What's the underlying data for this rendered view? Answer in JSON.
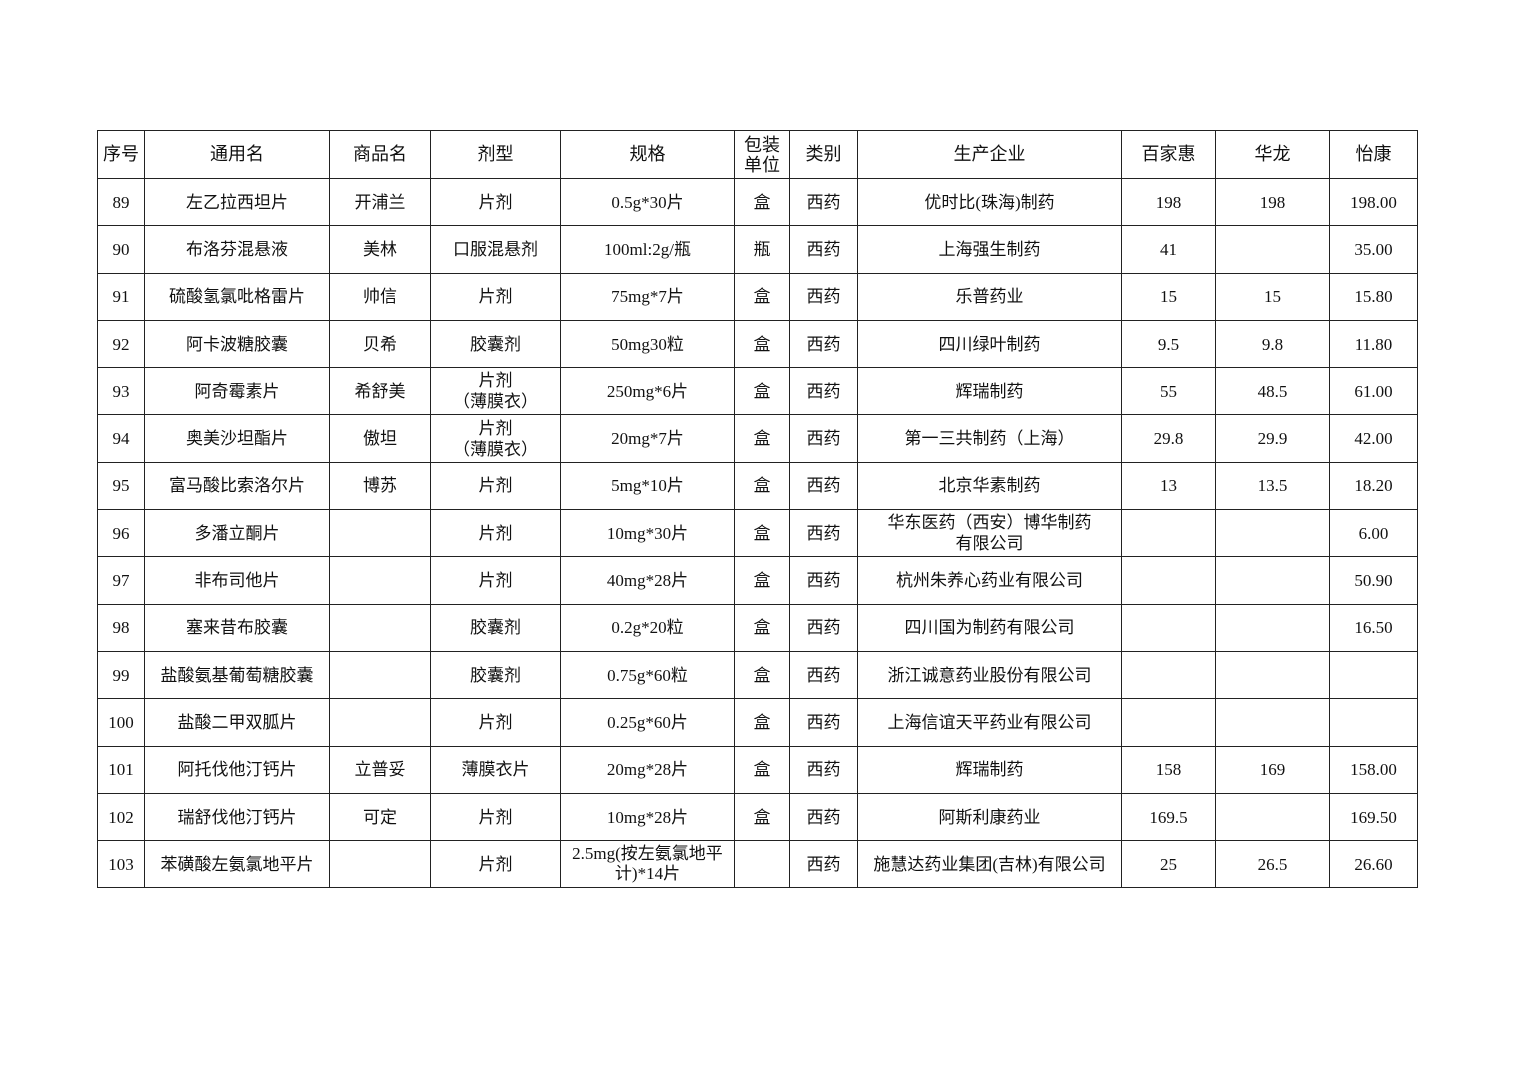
{
  "table": {
    "headers": [
      "序号",
      "通用名",
      "商品名",
      "剂型",
      "规格",
      "包装\n单位",
      "类别",
      "生产企业",
      "百家惠",
      "华龙",
      "怡康"
    ],
    "rows": [
      [
        "89",
        "左乙拉西坦片",
        "开浦兰",
        "片剂",
        "0.5g*30片",
        "盒",
        "西药",
        "优时比(珠海)制药",
        "198",
        "198",
        "198.00"
      ],
      [
        "90",
        "布洛芬混悬液",
        "美林",
        "口服混悬剂",
        "100ml:2g/瓶",
        "瓶",
        "西药",
        "上海强生制药",
        "41",
        "",
        "35.00"
      ],
      [
        "91",
        "硫酸氢氯吡格雷片",
        "帅信",
        "片剂",
        "75mg*7片",
        "盒",
        "西药",
        "乐普药业",
        "15",
        "15",
        "15.80"
      ],
      [
        "92",
        "阿卡波糖胶囊",
        "贝希",
        "胶囊剂",
        "50mg30粒",
        "盒",
        "西药",
        "四川绿叶制药",
        "9.5",
        "9.8",
        "11.80"
      ],
      [
        "93",
        "阿奇霉素片",
        "希舒美",
        "片剂\n（薄膜衣）",
        "250mg*6片",
        "盒",
        "西药",
        "辉瑞制药",
        "55",
        "48.5",
        "61.00"
      ],
      [
        "94",
        "奥美沙坦酯片",
        "傲坦",
        "片剂\n（薄膜衣）",
        "20mg*7片",
        "盒",
        "西药",
        "第一三共制药（上海）",
        "29.8",
        "29.9",
        "42.00"
      ],
      [
        "95",
        "富马酸比索洛尔片",
        "博苏",
        "片剂",
        "5mg*10片",
        "盒",
        "西药",
        "北京华素制药",
        "13",
        "13.5",
        "18.20"
      ],
      [
        "96",
        "多潘立酮片",
        "",
        "片剂",
        "10mg*30片",
        "盒",
        "西药",
        "华东医药（西安）博华制药\n有限公司",
        "",
        "",
        "6.00"
      ],
      [
        "97",
        "非布司他片",
        "",
        "片剂",
        "40mg*28片",
        "盒",
        "西药",
        "杭州朱养心药业有限公司",
        "",
        "",
        "50.90"
      ],
      [
        "98",
        "塞来昔布胶囊",
        "",
        "胶囊剂",
        "0.2g*20粒",
        "盒",
        "西药",
        "四川国为制药有限公司",
        "",
        "",
        "16.50"
      ],
      [
        "99",
        "盐酸氨基葡萄糖胶囊",
        "",
        "胶囊剂",
        "0.75g*60粒",
        "盒",
        "西药",
        "浙江诚意药业股份有限公司",
        "",
        "",
        ""
      ],
      [
        "100",
        "盐酸二甲双胍片",
        "",
        "片剂",
        "0.25g*60片",
        "盒",
        "西药",
        "上海信谊天平药业有限公司",
        "",
        "",
        ""
      ],
      [
        "101",
        "阿托伐他汀钙片",
        "立普妥",
        "薄膜衣片",
        "20mg*28片",
        "盒",
        "西药",
        "辉瑞制药",
        "158",
        "169",
        "158.00"
      ],
      [
        "102",
        "瑞舒伐他汀钙片",
        "可定",
        "片剂",
        "10mg*28片",
        "盒",
        "西药",
        "阿斯利康药业",
        "169.5",
        "",
        "169.50"
      ],
      [
        "103",
        "苯磺酸左氨氯地平片",
        "",
        "片剂",
        "2.5mg(按左氨氯地平\n计)*14片",
        "",
        "西药",
        "施慧达药业集团(吉林)有限公司",
        "25",
        "26.5",
        "26.60"
      ]
    ]
  }
}
